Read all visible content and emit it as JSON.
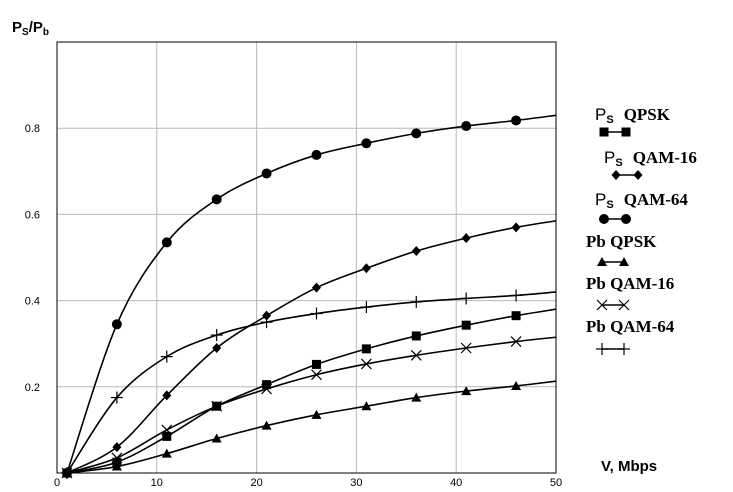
{
  "chart_data": {
    "type": "line",
    "ylabel": {
      "main": "P",
      "sub1": "S",
      "sep": "/P",
      "sub2": "b"
    },
    "xlabel": "V,  Mbps",
    "xlim": [
      0,
      50
    ],
    "ylim": [
      0,
      1
    ],
    "grid": true,
    "legend_position": "right",
    "x_ticks": [
      0,
      10,
      20,
      30,
      40,
      50
    ],
    "y_ticks": [
      0.2,
      0.4,
      0.6,
      0.8
    ],
    "x_tick_labels": [
      "0",
      "10",
      "20",
      "30",
      "40",
      "50"
    ],
    "y_tick_labels": [
      "0.2",
      "0.4",
      "0.6",
      "0.8"
    ],
    "series": [
      {
        "prefix": "P",
        "sub": "S",
        "name": "QPSK",
        "marker": "square",
        "x": [
          1,
          6,
          11,
          16,
          21,
          26,
          31,
          36,
          41,
          46,
          50
        ],
        "y": [
          0.0,
          0.025,
          0.085,
          0.155,
          0.205,
          0.252,
          0.288,
          0.318,
          0.343,
          0.365,
          0.38
        ]
      },
      {
        "prefix": "P",
        "sub": "S",
        "name": "QAM-16",
        "marker": "diamond",
        "x": [
          1,
          6,
          11,
          16,
          21,
          26,
          31,
          36,
          41,
          46,
          50
        ],
        "y": [
          0.0,
          0.06,
          0.18,
          0.29,
          0.365,
          0.43,
          0.475,
          0.515,
          0.545,
          0.57,
          0.585
        ]
      },
      {
        "prefix": "P",
        "sub": "S",
        "name": "QAM-64",
        "marker": "circle",
        "x": [
          1,
          6,
          11,
          16,
          21,
          26,
          31,
          36,
          41,
          46,
          50
        ],
        "y": [
          0.0,
          0.345,
          0.535,
          0.635,
          0.695,
          0.738,
          0.765,
          0.788,
          0.805,
          0.818,
          0.83
        ]
      },
      {
        "prefix": "",
        "sub": "",
        "name": "Pb QPSK",
        "marker": "triangle",
        "x": [
          1,
          6,
          11,
          16,
          21,
          26,
          31,
          36,
          41,
          46,
          50
        ],
        "y": [
          0.0,
          0.015,
          0.045,
          0.08,
          0.11,
          0.135,
          0.155,
          0.175,
          0.19,
          0.202,
          0.213
        ]
      },
      {
        "prefix": "",
        "sub": "",
        "name": "Pb QAM-16",
        "marker": "x",
        "x": [
          1,
          6,
          11,
          16,
          21,
          26,
          31,
          36,
          41,
          46,
          50
        ],
        "y": [
          0.0,
          0.035,
          0.1,
          0.155,
          0.195,
          0.228,
          0.253,
          0.273,
          0.29,
          0.305,
          0.315
        ]
      },
      {
        "prefix": "",
        "sub": "",
        "name": "Pb QAM-64",
        "marker": "plus",
        "x": [
          1,
          6,
          11,
          16,
          21,
          26,
          31,
          36,
          41,
          46,
          50
        ],
        "y": [
          0.0,
          0.175,
          0.27,
          0.32,
          0.35,
          0.37,
          0.385,
          0.397,
          0.405,
          0.412,
          0.42
        ]
      }
    ]
  }
}
